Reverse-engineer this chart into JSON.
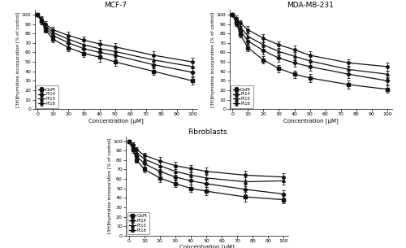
{
  "x": [
    0,
    2.5,
    5,
    10,
    20,
    30,
    40,
    50,
    75,
    100
  ],
  "mcf7": {
    "title": "MCF-7",
    "cispt": [
      100,
      93,
      84,
      74,
      65,
      59,
      55,
      50,
      40,
      30
    ],
    "pt14": [
      100,
      93,
      86,
      78,
      70,
      64,
      60,
      57,
      47,
      39
    ],
    "pt15": [
      100,
      94,
      88,
      81,
      74,
      68,
      64,
      61,
      52,
      45
    ],
    "pt16": [
      100,
      95,
      90,
      84,
      78,
      73,
      69,
      66,
      57,
      50
    ],
    "cispt_err": [
      1,
      3,
      3,
      3,
      4,
      4,
      5,
      4,
      4,
      4
    ],
    "pt14_err": [
      1,
      3,
      3,
      3,
      4,
      4,
      4,
      4,
      4,
      4
    ],
    "pt15_err": [
      1,
      3,
      3,
      3,
      4,
      4,
      4,
      4,
      4,
      4
    ],
    "pt16_err": [
      1,
      3,
      3,
      3,
      4,
      4,
      4,
      4,
      4,
      4
    ]
  },
  "mdamb231": {
    "title": "MDA-MB-231",
    "cispt": [
      100,
      91,
      79,
      65,
      52,
      43,
      37,
      33,
      26,
      21
    ],
    "pt14": [
      100,
      92,
      83,
      72,
      62,
      54,
      49,
      45,
      37,
      30
    ],
    "pt15": [
      100,
      94,
      87,
      77,
      68,
      61,
      56,
      51,
      42,
      37
    ],
    "pt16": [
      100,
      96,
      91,
      84,
      75,
      68,
      63,
      57,
      49,
      45
    ],
    "cispt_err": [
      1,
      3,
      3,
      4,
      4,
      4,
      4,
      4,
      4,
      4
    ],
    "pt14_err": [
      1,
      3,
      3,
      4,
      4,
      4,
      4,
      4,
      4,
      4
    ],
    "pt15_err": [
      1,
      3,
      3,
      4,
      4,
      4,
      4,
      4,
      4,
      4
    ],
    "pt16_err": [
      1,
      3,
      3,
      4,
      4,
      4,
      4,
      4,
      4,
      4
    ]
  },
  "fibroblasts": {
    "title": "Fibroblasts",
    "cispt": [
      100,
      91,
      80,
      70,
      61,
      55,
      50,
      47,
      41,
      38
    ],
    "pt14": [
      100,
      92,
      84,
      76,
      68,
      62,
      58,
      55,
      49,
      44
    ],
    "pt15": [
      100,
      94,
      88,
      81,
      74,
      68,
      64,
      61,
      57,
      58
    ],
    "pt16": [
      100,
      96,
      91,
      85,
      79,
      74,
      71,
      68,
      64,
      62
    ],
    "cispt_err": [
      1,
      3,
      3,
      3,
      4,
      4,
      4,
      4,
      5,
      4
    ],
    "pt14_err": [
      1,
      3,
      3,
      3,
      4,
      4,
      4,
      4,
      5,
      4
    ],
    "pt15_err": [
      1,
      3,
      3,
      3,
      4,
      4,
      4,
      4,
      5,
      4
    ],
    "pt16_err": [
      1,
      3,
      3,
      3,
      4,
      4,
      4,
      4,
      5,
      4
    ]
  },
  "legend_labels": [
    "CisPt",
    "Pt14",
    "Pt15",
    "Pt16"
  ],
  "xlabel": "Concentration [μM]",
  "ylabel": "[3H]thymidine incorporation [% of control]",
  "line_color": "#111111",
  "markers": [
    "s",
    "D",
    "^",
    "o"
  ],
  "marker_size": 2.5,
  "line_width": 0.9,
  "xlim": [
    -2,
    103
  ],
  "ylim": [
    0,
    105
  ],
  "xticks": [
    0,
    10,
    20,
    30,
    40,
    50,
    60,
    70,
    80,
    90,
    100
  ],
  "yticks": [
    0,
    10,
    20,
    30,
    40,
    50,
    60,
    70,
    80,
    90,
    100
  ]
}
